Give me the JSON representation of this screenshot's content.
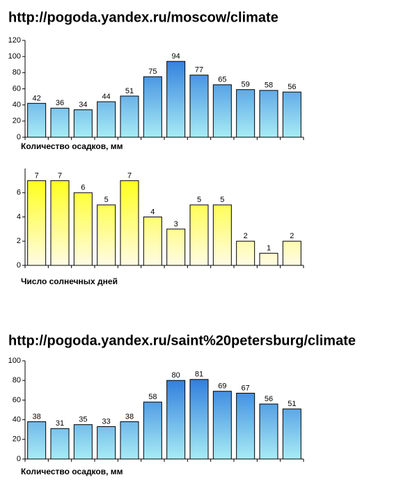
{
  "chart_data": [
    {
      "type": "bar",
      "title": "http://pogoda.yandex.ru/moscow/climate",
      "xlabel": "Количество осадков, мм",
      "values": [
        42,
        36,
        34,
        44,
        51,
        75,
        94,
        77,
        65,
        59,
        58,
        56
      ],
      "color": "#1565d8",
      "color_light": "#a8ecf5",
      "ylim": [
        0,
        120
      ],
      "yticks": [
        0,
        20,
        40,
        60,
        80,
        100,
        120
      ]
    },
    {
      "type": "bar",
      "xlabel": "Число солнечных дней",
      "values": [
        7,
        7,
        6,
        5,
        7,
        4,
        3,
        5,
        5,
        2,
        1,
        2
      ],
      "color": "#ffff00",
      "color_light": "#fffbe6",
      "ylim": [
        0,
        8
      ],
      "yticks": [
        0,
        2,
        4,
        6
      ]
    },
    {
      "type": "bar",
      "title": "http://pogoda.yandex.ru/saint%20petersburg/climate",
      "xlabel": "Количество осадков, мм",
      "values": [
        38,
        31,
        35,
        33,
        38,
        58,
        80,
        81,
        69,
        67,
        56,
        51
      ],
      "color": "#1565d8",
      "color_light": "#a8ecf5",
      "ylim": [
        0,
        100
      ],
      "yticks": [
        0,
        20,
        40,
        60,
        80,
        100
      ]
    }
  ]
}
